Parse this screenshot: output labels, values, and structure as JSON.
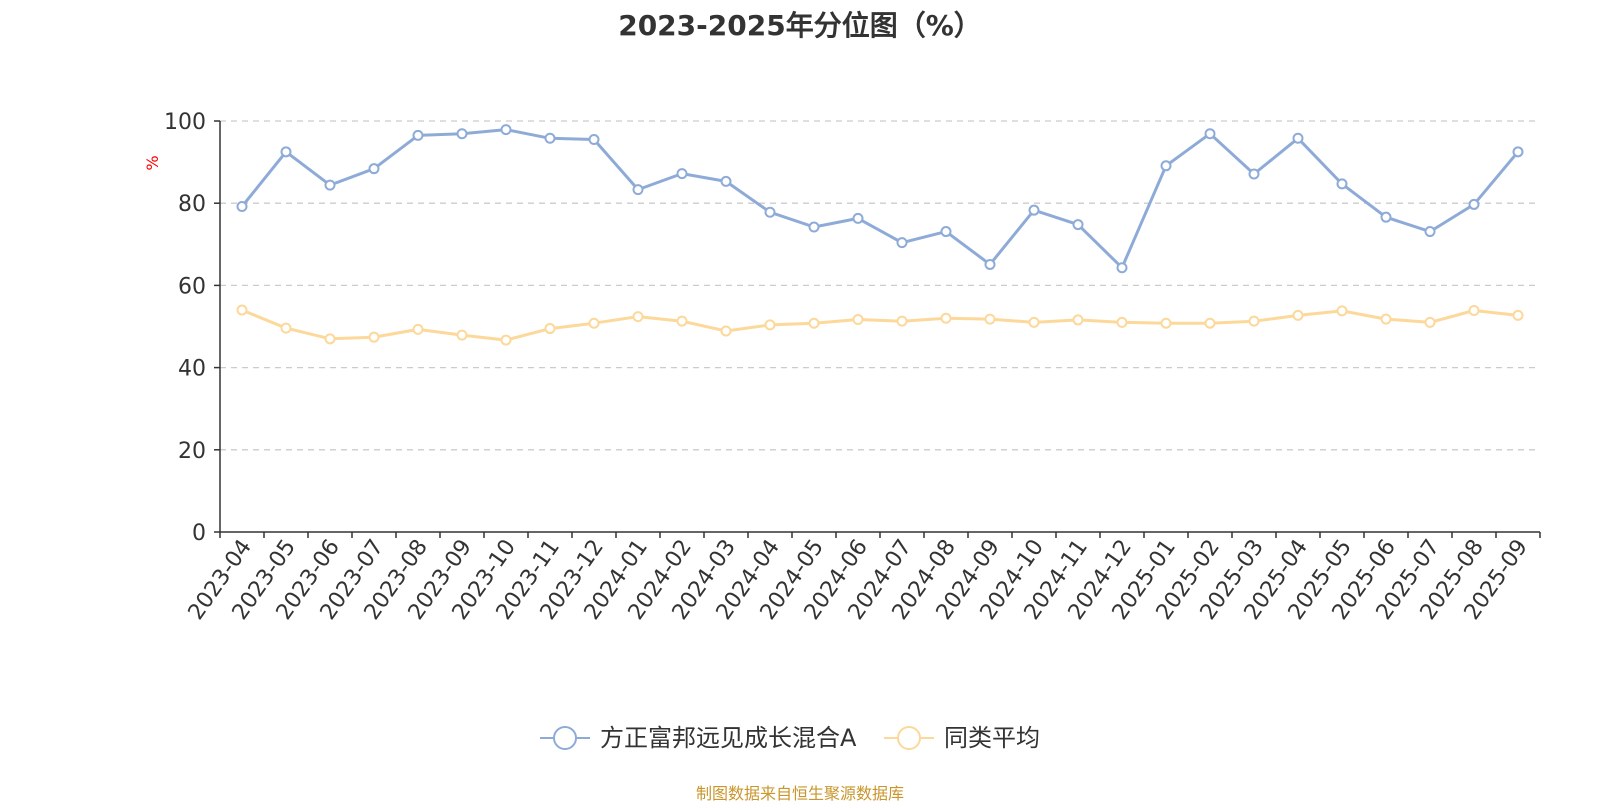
{
  "chart_data": {
    "type": "line",
    "title": "2023-2025年分位图（%）",
    "ylabel": "%",
    "xlabel": "",
    "ylim": [
      0,
      100
    ],
    "yticks": [
      0,
      20,
      40,
      60,
      80,
      100
    ],
    "grid": true,
    "legend_position": "bottom-center",
    "x": [
      "2023-04",
      "2023-05",
      "2023-06",
      "2023-07",
      "2023-08",
      "2023-09",
      "2023-10",
      "2023-11",
      "2023-12",
      "2024-01",
      "2024-02",
      "2024-03",
      "2024-04",
      "2024-05",
      "2024-06",
      "2024-07",
      "2024-08",
      "2024-09",
      "2024-10",
      "2024-11",
      "2024-12",
      "2025-01",
      "2025-02",
      "2025-03",
      "2025-04",
      "2025-05",
      "2025-06",
      "2025-07",
      "2025-08",
      "2025-09"
    ],
    "series": [
      {
        "name": "方正富邦远见成长混合A",
        "color": "#8eabd8",
        "values": [
          79.2,
          92.5,
          84.4,
          88.4,
          96.5,
          96.9,
          97.9,
          95.8,
          95.5,
          83.3,
          87.2,
          85.3,
          77.8,
          74.2,
          76.3,
          70.4,
          73.1,
          65.1,
          78.3,
          74.8,
          64.3,
          89.1,
          96.9,
          87.1,
          95.8,
          84.7,
          76.6,
          73.1,
          79.7,
          92.5
        ]
      },
      {
        "name": "同类平均",
        "color": "#fcd89a",
        "values": [
          54.0,
          49.6,
          47.0,
          47.4,
          49.3,
          47.9,
          46.7,
          49.5,
          50.8,
          52.4,
          51.3,
          48.9,
          50.4,
          50.8,
          51.7,
          51.3,
          52.0,
          51.8,
          51.0,
          51.6,
          51.0,
          50.8,
          50.8,
          51.3,
          52.7,
          53.8,
          51.8,
          51.0,
          53.9,
          52.7
        ]
      }
    ]
  },
  "source_note": "制图数据来自恒生聚源数据库",
  "axis_color": "#333333",
  "grid_color": "#cccccc",
  "tick_label_color": "#333333",
  "ylabel_color": "#ff0000",
  "source_note_color": "#c9962c"
}
